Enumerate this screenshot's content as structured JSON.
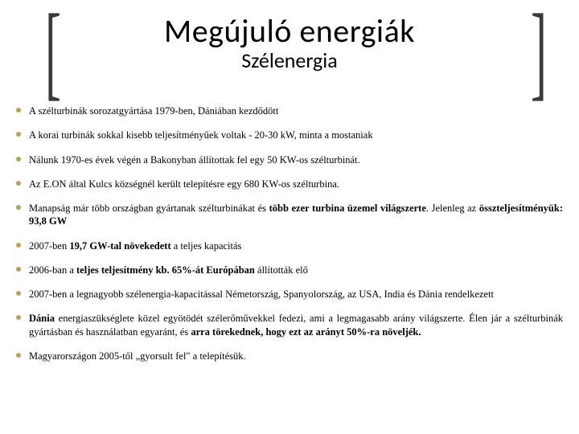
{
  "colors": {
    "background": "#ffffff",
    "text": "#000000",
    "bullet": "#b7a252",
    "bracket": "#3a3a3a"
  },
  "title": {
    "main": "Megújuló energiák",
    "sub": "Szélenergia"
  },
  "bullets": [
    {
      "html": "A szélturbinák sorozatgyártása 1979-ben, Dániában kezdődött"
    },
    {
      "html": "A korai turbinák sokkal kisebb teljesítményűek voltak - 20-30 kW, minta a mostaniak"
    },
    {
      "html": "Nálunk 1970-es évek végén a Bakonyban állítottak fel egy 50 KW-os szélturbinát."
    },
    {
      "html": "Az E.ON által Kulcs községnél került telepítésre egy 680 KW-os szélturbina."
    },
    {
      "html": "Manapság már több országban gyártanak szélturbinákat és <span class=\"b\">több ezer turbina üzemel világszerte</span>. Jelenleg az <span class=\"b\">összteljesítményük: 93,8 GW</span>"
    },
    {
      "html": "2007-ben <span class=\"b\">19,7 GW-tal növekedett</span> a teljes kapacitás"
    },
    {
      "html": "2006-ban a <span class=\"b\">teljes teljesítmény kb. 65%-át Európában</span> állították elő"
    },
    {
      "html": "2007-ben a legnagyobb szélenergia-kapacitással Németország, Spanyolország, az USA, India és Dánia rendelkezett"
    },
    {
      "html": "<span class=\"b\">Dánia</span> energiaszükséglete közel egyötödét szélerőművekkel fedezi, ami a legmagasabb arány világszerte. Élen jár a szélturbinák gyártásban és használatban egyaránt, és <span class=\"b\">arra törekednek, hogy ezt az arányt 50%-ra növeljék.</span>"
    },
    {
      "html": "Magyarországon 2005-től „gyorsult fel\" a telepítésük."
    }
  ]
}
